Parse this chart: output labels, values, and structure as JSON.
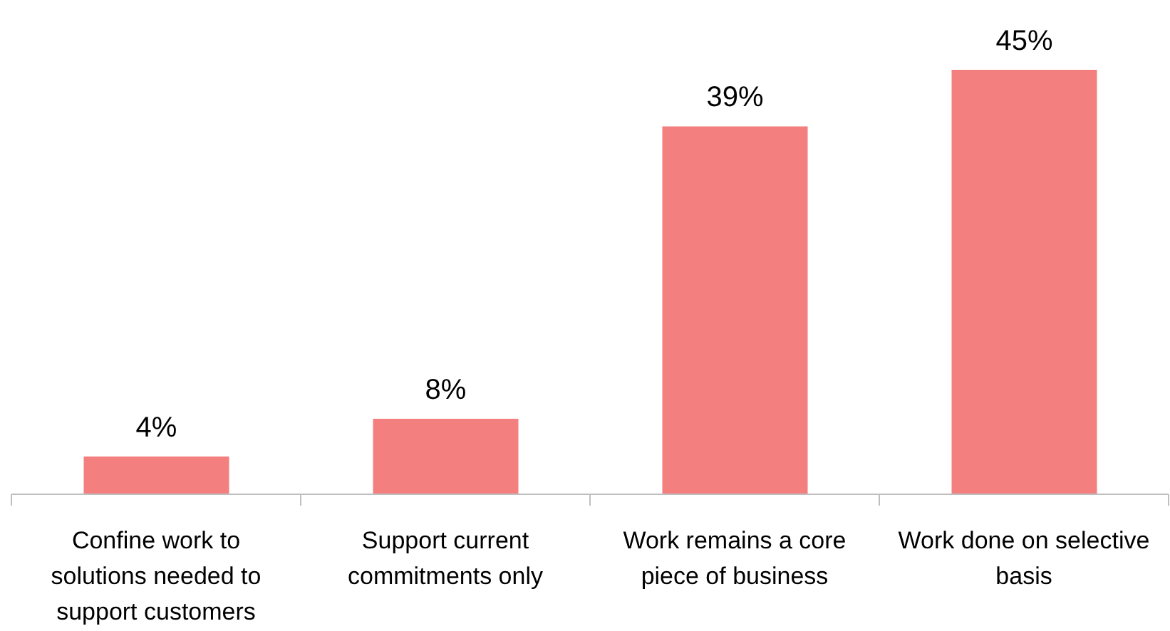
{
  "chart_data": {
    "type": "bar",
    "categories": [
      "Confine work to solutions needed to support customers",
      "Support current commitments only",
      "Work remains a core piece of business",
      "Work done on selective basis"
    ],
    "values": [
      4,
      8,
      39,
      45
    ],
    "color": "#f47f7f",
    "value_labels": [
      "4%",
      "8%",
      "39%",
      "45%"
    ],
    "grid": false,
    "legend": false
  }
}
